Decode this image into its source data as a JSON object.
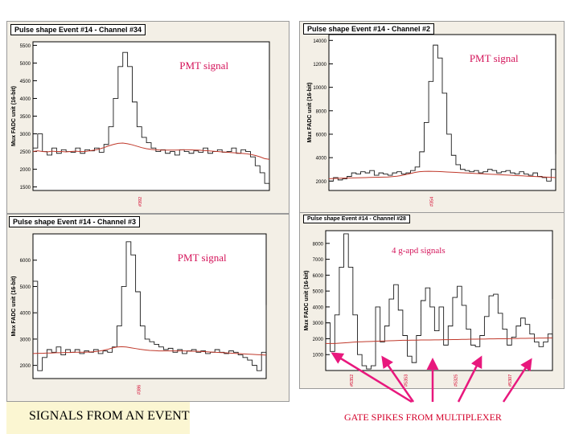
{
  "colors": {
    "panel_bg": "#f3efe6",
    "data_line": "#1a1a1a",
    "baseline_line": "#c0392b",
    "annotation": "#d4145a",
    "arrow": "#e8187d",
    "footer_right": "#d4002a",
    "footer_left_bg": "#fbf6d2"
  },
  "footer": {
    "left": "SIGNALS FROM AN EVENT",
    "right": "GATE SPIKES FROM MULTIPLEXER"
  },
  "chart_data": [
    {
      "type": "line",
      "title": "Pulse shape   Event #14 - Channel #34",
      "ylabel": "Mux FADC unit (16-bit)",
      "annotation": "PMT signal",
      "marker_label": "#392",
      "ylim": [
        1400,
        5600
      ],
      "yticks": [
        "1500",
        "2000",
        "2500",
        "3000",
        "3500",
        "4000",
        "4500",
        "5000",
        "5500"
      ],
      "x": [
        0,
        2,
        4,
        6,
        8,
        10,
        12,
        14,
        16,
        18,
        20,
        22,
        24,
        26,
        28,
        30,
        32,
        34,
        36,
        38,
        40,
        42,
        44,
        46,
        48,
        50,
        52,
        54,
        56,
        58,
        60,
        62,
        64,
        66,
        68,
        70,
        72,
        74,
        76,
        78,
        80,
        82,
        84,
        86,
        88,
        90,
        92,
        94,
        96,
        98,
        100
      ],
      "series": [
        {
          "values": [
            2600,
            3000,
            2500,
            2400,
            2600,
            2450,
            2550,
            2500,
            2480,
            2600,
            2450,
            2550,
            2520,
            2600,
            2480,
            2700,
            3200,
            4000,
            4900,
            5300,
            4900,
            3900,
            3200,
            2900,
            2750,
            2600,
            2500,
            2550,
            2450,
            2500,
            2400,
            2550,
            2500,
            2450,
            2520,
            2480,
            2600,
            2450,
            2500,
            2550,
            2480,
            2500,
            2600,
            2450,
            2550,
            2500,
            2350,
            2100,
            1900,
            1600,
            3400
          ]
        },
        {
          "values": [
            2500,
            2520,
            2500,
            2490,
            2510,
            2500,
            2500,
            2490,
            2500,
            2510,
            2500,
            2500,
            2520,
            2540,
            2570,
            2610,
            2660,
            2700,
            2730,
            2740,
            2720,
            2690,
            2650,
            2610,
            2580,
            2560,
            2550,
            2540,
            2540,
            2540,
            2540,
            2545,
            2550,
            2550,
            2545,
            2540,
            2530,
            2520,
            2510,
            2500,
            2490,
            2480,
            2470,
            2460,
            2450,
            2440,
            2420,
            2390,
            2350,
            2300,
            2280
          ]
        }
      ]
    },
    {
      "type": "line",
      "title": "Pulse shape   Event #14 - Channel #2",
      "ylabel": "Mux FADC unit (16-bit)",
      "annotation": "PMT signal",
      "marker_label": "#354",
      "ylim": [
        1200,
        14500
      ],
      "yticks": [
        "2000",
        "4000",
        "6000",
        "8000",
        "10000",
        "12000",
        "14000"
      ],
      "x": [
        0,
        2,
        4,
        6,
        8,
        10,
        12,
        14,
        16,
        18,
        20,
        22,
        24,
        26,
        28,
        30,
        32,
        34,
        36,
        38,
        40,
        42,
        44,
        46,
        48,
        50,
        52,
        54,
        56,
        58,
        60,
        62,
        64,
        66,
        68,
        70,
        72,
        74,
        76,
        78,
        80,
        82,
        84,
        86,
        88,
        90,
        92,
        94,
        96,
        98,
        100
      ],
      "series": [
        {
          "values": [
            2000,
            2300,
            2100,
            2200,
            2400,
            2700,
            2600,
            2800,
            2700,
            2900,
            2500,
            2700,
            2600,
            2500,
            2700,
            2800,
            2600,
            2700,
            2900,
            3200,
            4500,
            7000,
            10500,
            13600,
            12500,
            9500,
            6000,
            4200,
            3400,
            3000,
            2900,
            2800,
            2900,
            2700,
            2800,
            3000,
            2900,
            2700,
            2800,
            2900,
            2700,
            2600,
            2800,
            2600,
            2500,
            2700,
            2400,
            2300,
            2000,
            3000,
            4300
          ]
        },
        {
          "values": [
            2200,
            2220,
            2240,
            2250,
            2260,
            2270,
            2280,
            2290,
            2300,
            2310,
            2320,
            2330,
            2340,
            2350,
            2380,
            2420,
            2480,
            2560,
            2650,
            2740,
            2800,
            2830,
            2840,
            2830,
            2820,
            2800,
            2780,
            2760,
            2740,
            2720,
            2700,
            2680,
            2660,
            2640,
            2620,
            2600,
            2580,
            2560,
            2540,
            2520,
            2500,
            2480,
            2460,
            2440,
            2420,
            2400,
            2380,
            2360,
            2340,
            2320,
            2300
          ]
        }
      ]
    },
    {
      "type": "line",
      "title": "Pulse shape   Event #14 - Channel #3",
      "ylabel": "Mux FADC unit (16-bit)",
      "annotation": "PMT signal",
      "marker_label": "#386",
      "ylim": [
        1500,
        7000
      ],
      "yticks": [
        "2000",
        "3000",
        "4000",
        "5000",
        "6000"
      ],
      "x": [
        0,
        2,
        4,
        6,
        8,
        10,
        12,
        14,
        16,
        18,
        20,
        22,
        24,
        26,
        28,
        30,
        32,
        34,
        36,
        38,
        40,
        42,
        44,
        46,
        48,
        50,
        52,
        54,
        56,
        58,
        60,
        62,
        64,
        66,
        68,
        70,
        72,
        74,
        76,
        78,
        80,
        82,
        84,
        86,
        88,
        90,
        92,
        94,
        96,
        98,
        100
      ],
      "series": [
        {
          "values": [
            5200,
            1800,
            2300,
            2600,
            2500,
            2700,
            2400,
            2600,
            2500,
            2600,
            2450,
            2550,
            2500,
            2600,
            2450,
            2550,
            2500,
            2700,
            3500,
            5000,
            6700,
            6200,
            4800,
            3500,
            3000,
            2900,
            2800,
            2700,
            2600,
            2650,
            2500,
            2600,
            2450,
            2550,
            2600,
            2500,
            2550,
            2450,
            2500,
            2600,
            2500,
            2450,
            2550,
            2500,
            2400,
            2300,
            2200,
            2000,
            1800,
            2500,
            4300
          ]
        },
        {
          "values": [
            2450,
            2460,
            2460,
            2470,
            2470,
            2480,
            2480,
            2490,
            2490,
            2500,
            2500,
            2500,
            2510,
            2520,
            2540,
            2570,
            2610,
            2660,
            2700,
            2710,
            2700,
            2670,
            2640,
            2610,
            2590,
            2570,
            2560,
            2550,
            2550,
            2550,
            2550,
            2550,
            2550,
            2545,
            2540,
            2535,
            2530,
            2520,
            2510,
            2500,
            2490,
            2480,
            2470,
            2460,
            2450,
            2440,
            2430,
            2420,
            2410,
            2400,
            2390
          ]
        }
      ]
    },
    {
      "type": "line",
      "title": "Pulse shape   Event #14 - Channel #28",
      "ylabel": "Mux FADC unit (16-bit)",
      "annotation": "4 g-apd signals",
      "marker_labels": [
        "#5352",
        "#5353",
        "#5325",
        "#5307"
      ],
      "ylim": [
        0,
        8800
      ],
      "yticks": [
        "1000",
        "2000",
        "3000",
        "4000",
        "5000",
        "6000",
        "7000",
        "8000"
      ],
      "x": [
        0,
        2,
        4,
        6,
        8,
        10,
        12,
        14,
        16,
        18,
        20,
        22,
        24,
        26,
        28,
        30,
        32,
        34,
        36,
        38,
        40,
        42,
        44,
        46,
        48,
        50,
        52,
        54,
        56,
        58,
        60,
        62,
        64,
        66,
        68,
        70,
        72,
        74,
        76,
        78,
        80,
        82,
        84,
        86,
        88,
        90,
        92,
        94,
        96,
        98,
        100
      ],
      "series": [
        {
          "values": [
            3000,
            1200,
            3500,
            6500,
            8600,
            6500,
            3500,
            1000,
            300,
            100,
            300,
            4000,
            1800,
            2800,
            4500,
            5400,
            3800,
            2200,
            900,
            500,
            2200,
            4400,
            5200,
            4000,
            2500,
            4000,
            1600,
            2800,
            4600,
            5300,
            4100,
            2600,
            1600,
            1500,
            2200,
            3400,
            4700,
            4800,
            3600,
            2600,
            1600,
            2100,
            2800,
            3300,
            2900,
            2300,
            1800,
            1500,
            1800,
            2300,
            4500
          ]
        },
        {
          "values": [
            1700,
            1700,
            1700,
            1720,
            1740,
            1760,
            1780,
            1800,
            1810,
            1820,
            1830,
            1840,
            1850,
            1860,
            1870,
            1880,
            1890,
            1900,
            1900,
            1910,
            1910,
            1920,
            1920,
            1920,
            1930,
            1930,
            1940,
            1940,
            1950,
            1950,
            1960,
            1960,
            1970,
            1970,
            1980,
            1980,
            1990,
            1990,
            2000,
            2000,
            2000,
            2010,
            2010,
            2020,
            2020,
            2030,
            2030,
            2040,
            2040,
            2050,
            2050
          ]
        }
      ]
    }
  ]
}
